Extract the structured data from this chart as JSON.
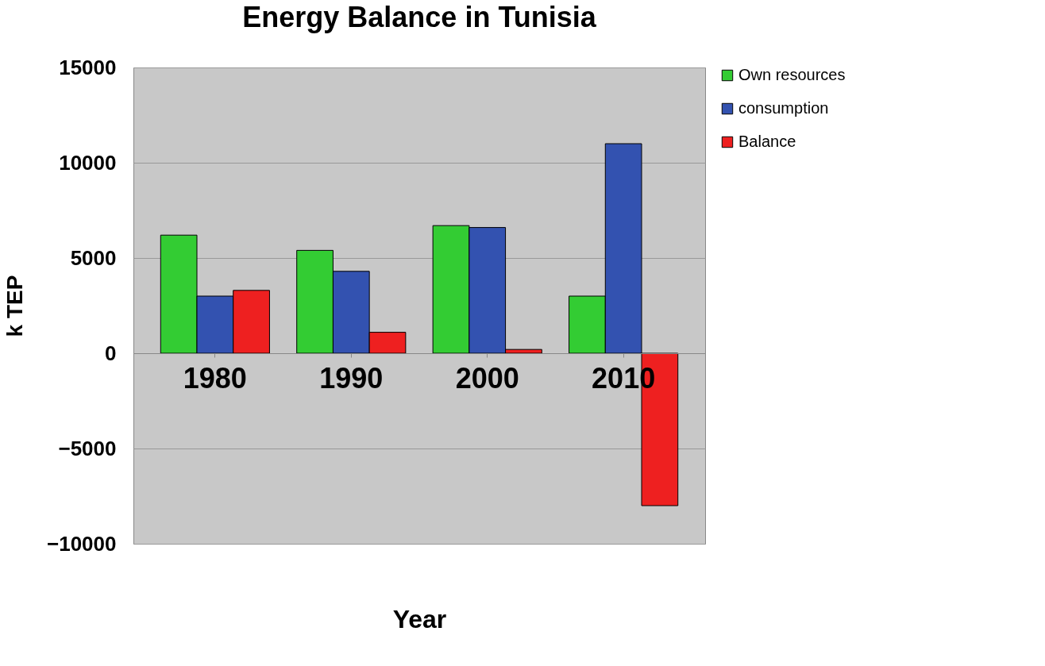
{
  "chart_data": {
    "type": "bar",
    "title": "Energy Balance in Tunisia",
    "xlabel": "Year",
    "ylabel": "k TEP",
    "categories": [
      "1980",
      "1990",
      "2000",
      "2010"
    ],
    "series": [
      {
        "name": "Own resources",
        "color": "#33cc33",
        "values": [
          6200,
          5400,
          6700,
          3000
        ]
      },
      {
        "name": "consumption",
        "color": "#3352b0",
        "values": [
          3000,
          4300,
          6600,
          11000
        ]
      },
      {
        "name": "Balance",
        "color": "#ee2020",
        "values": [
          3300,
          1100,
          200,
          -8000
        ]
      }
    ],
    "ylim": [
      -10000,
      15000
    ],
    "yticks": [
      -10000,
      -5000,
      0,
      5000,
      10000,
      15000
    ],
    "grid": "y",
    "legend": "right"
  }
}
